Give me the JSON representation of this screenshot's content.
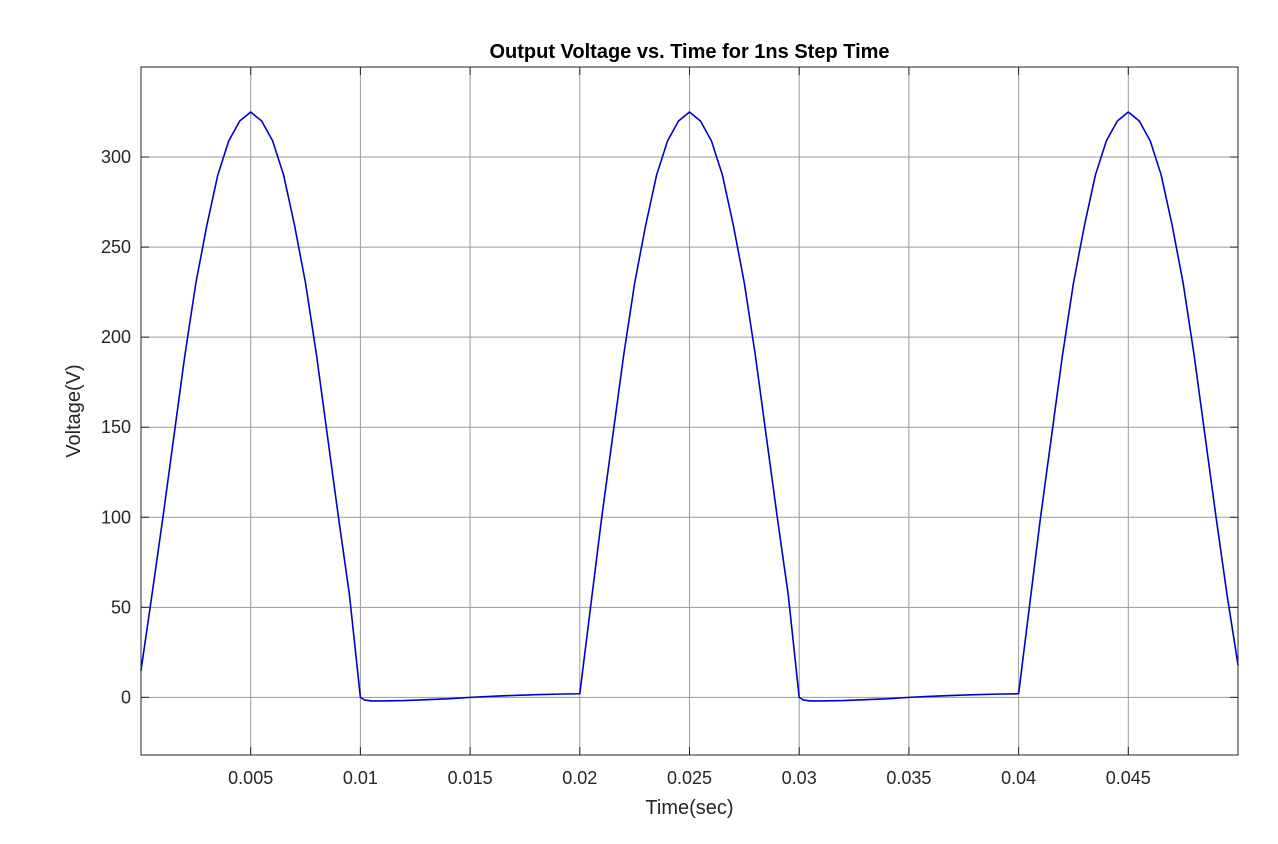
{
  "chart_data": {
    "type": "line",
    "title": "Output Voltage vs. Time for 1ns Step Time",
    "xlabel": "Time(sec)",
    "ylabel": "Voltage(V)",
    "xlim": [
      0,
      0.05
    ],
    "ylim": [
      -32,
      350
    ],
    "x_ticks": [
      0.005,
      0.01,
      0.015,
      0.02,
      0.025,
      0.03,
      0.035,
      0.04,
      0.045
    ],
    "x_tick_labels": [
      "0.005",
      "0.01",
      "0.015",
      "0.02",
      "0.025",
      "0.03",
      "0.035",
      "0.04",
      "0.045"
    ],
    "y_ticks": [
      0,
      50,
      100,
      150,
      200,
      250,
      300
    ],
    "y_tick_labels": [
      "0",
      "50",
      "100",
      "150",
      "200",
      "250",
      "300"
    ],
    "grid": true,
    "series_color": "#0000cc",
    "series": [
      {
        "x": [
          0,
          0.0005,
          0.001,
          0.0015,
          0.002,
          0.0025,
          0.003,
          0.0035,
          0.004,
          0.0045,
          0.005,
          0.0055,
          0.006,
          0.0065,
          0.007,
          0.0075,
          0.008,
          0.0085,
          0.009,
          0.0095,
          0.01,
          0.0102,
          0.0105,
          0.011,
          0.012,
          0.013,
          0.014,
          0.015,
          0.016,
          0.017,
          0.018,
          0.019,
          0.02,
          0.0205,
          0.021,
          0.0215,
          0.022,
          0.0225,
          0.023,
          0.0235,
          0.024,
          0.0245,
          0.025,
          0.0255,
          0.026,
          0.0265,
          0.027,
          0.0275,
          0.028,
          0.0285,
          0.029,
          0.0295,
          0.03,
          0.0302,
          0.0305,
          0.031,
          0.032,
          0.033,
          0.034,
          0.035,
          0.036,
          0.037,
          0.038,
          0.039,
          0.04,
          0.0405,
          0.041,
          0.0415,
          0.042,
          0.0425,
          0.043,
          0.0435,
          0.044,
          0.0445,
          0.045,
          0.0455,
          0.046,
          0.0465,
          0.047,
          0.0475,
          0.048,
          0.0485,
          0.049,
          0.0495,
          0.05
        ],
        "y": [
          15,
          57,
          100,
          145,
          190,
          230,
          262,
          290,
          309,
          320,
          325,
          320,
          309,
          290,
          262,
          230,
          190,
          145,
          100,
          57,
          0,
          -1.5,
          -2,
          -2,
          -1.8,
          -1.3,
          -0.8,
          0,
          0.6,
          1.1,
          1.5,
          1.8,
          2,
          51,
          100,
          145,
          190,
          230,
          262,
          290,
          309,
          320,
          325,
          320,
          309,
          290,
          262,
          230,
          190,
          145,
          100,
          57,
          0,
          -1.5,
          -2,
          -2,
          -1.8,
          -1.3,
          -0.8,
          0,
          0.6,
          1.1,
          1.5,
          1.8,
          2,
          51,
          100,
          145,
          190,
          230,
          262,
          290,
          309,
          320,
          325,
          320,
          309,
          290,
          262,
          230,
          190,
          145,
          100,
          57,
          18
        ]
      }
    ]
  }
}
